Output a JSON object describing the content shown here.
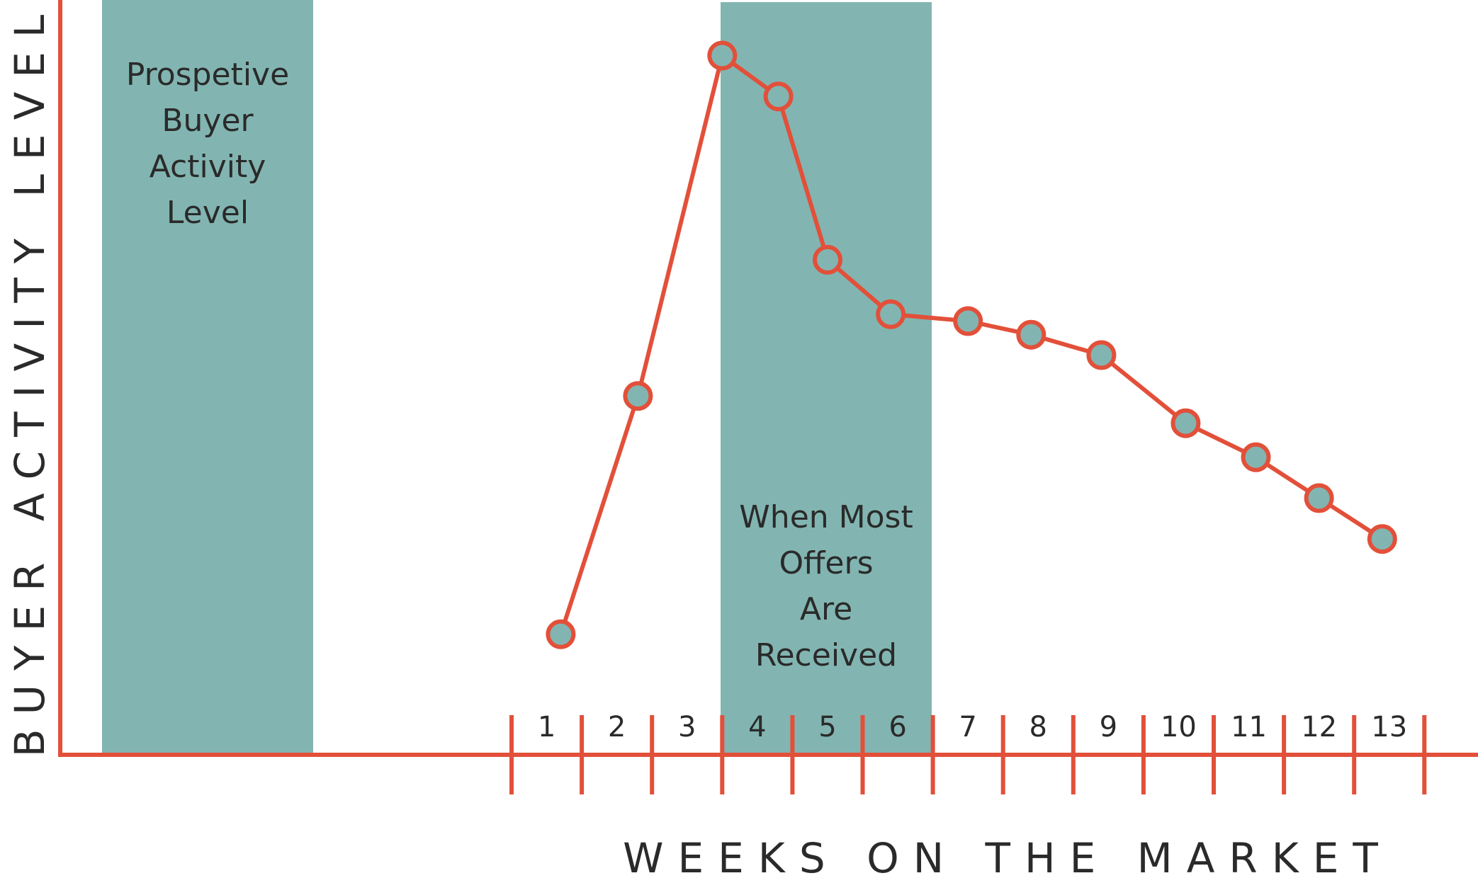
{
  "colors": {
    "accent": "#e2503a",
    "band": "#82b5b1",
    "text": "#2a2a2a"
  },
  "legend_box": {
    "lines": [
      "Prospetive",
      "Buyer",
      "Activity",
      "Level"
    ]
  },
  "offer_band": {
    "lines": [
      "When Most",
      "Offers",
      "Are",
      "Received"
    ]
  },
  "chart_data": {
    "type": "line",
    "title": "",
    "xlabel": "WEEKS ON THE MARKET",
    "ylabel": "BUYER ACTIVITY LEVEL",
    "categories": [
      "1",
      "2",
      "3",
      "4",
      "5",
      "6",
      "7",
      "8",
      "9",
      "10",
      "11",
      "12",
      "13"
    ],
    "x": [
      1.2,
      2.3,
      3.5,
      4.3,
      5.0,
      5.9,
      7.0,
      7.9,
      8.9,
      10.1,
      11.1,
      12.0,
      12.9
    ],
    "values": [
      15,
      50,
      100,
      94,
      70,
      62,
      61,
      59,
      56,
      46,
      41,
      35,
      29
    ],
    "xlim": [
      0.5,
      13.5
    ],
    "ylim": [
      0,
      104
    ],
    "shaded_region": {
      "from_week": 4,
      "to_week": 6
    },
    "grid": false
  }
}
